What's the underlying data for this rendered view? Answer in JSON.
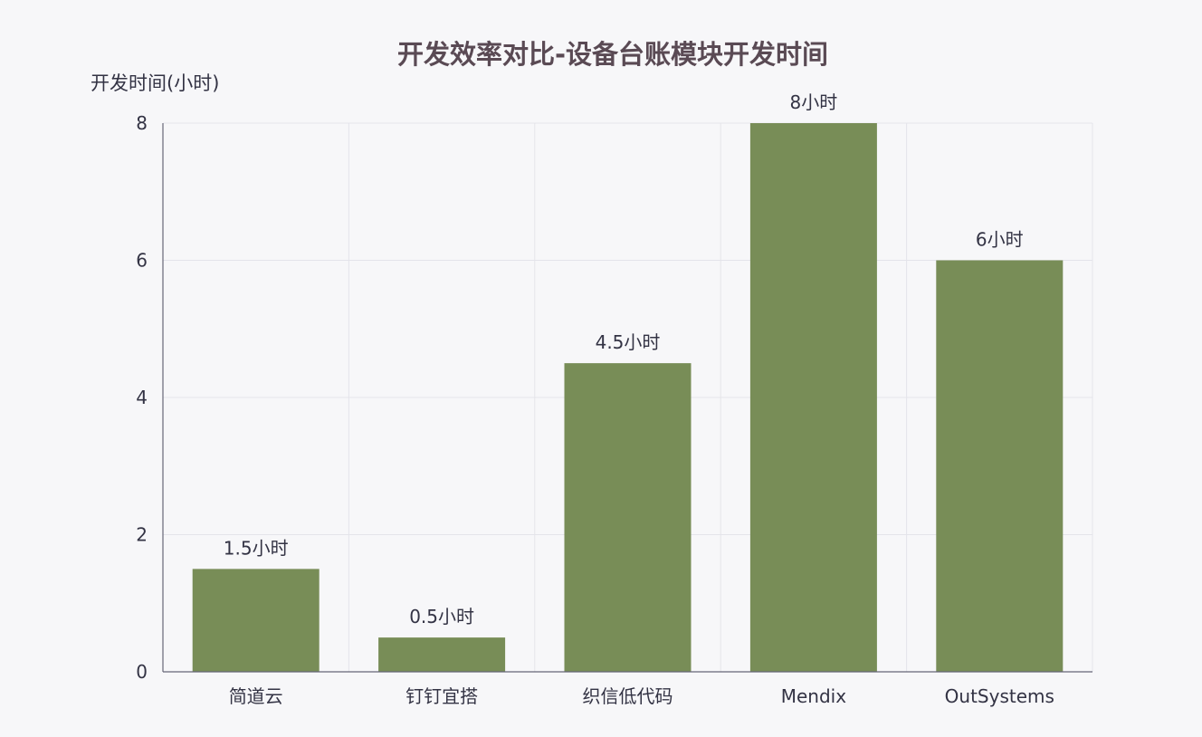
{
  "chart_data": {
    "type": "bar",
    "title": "开发效率对比-设备台账模块开发时间",
    "ylabel": "开发时间(小时)",
    "xlabel": "",
    "categories": [
      "简道云",
      "钉钉宜搭",
      "织信低代码",
      "Mendix",
      "OutSystems"
    ],
    "values": [
      1.5,
      0.5,
      4.5,
      8,
      6
    ],
    "data_labels": [
      "1.5小时",
      "0.5小时",
      "4.5小时",
      "8小时",
      "6小时"
    ],
    "ylim": [
      0,
      8
    ],
    "yticks": [
      "0",
      "2",
      "4",
      "6",
      "8"
    ],
    "grid": true,
    "bar_color": "#788d57",
    "grid_color": "#e4e4ea",
    "text_color": "#333344",
    "title_color": "#5a4a54"
  }
}
